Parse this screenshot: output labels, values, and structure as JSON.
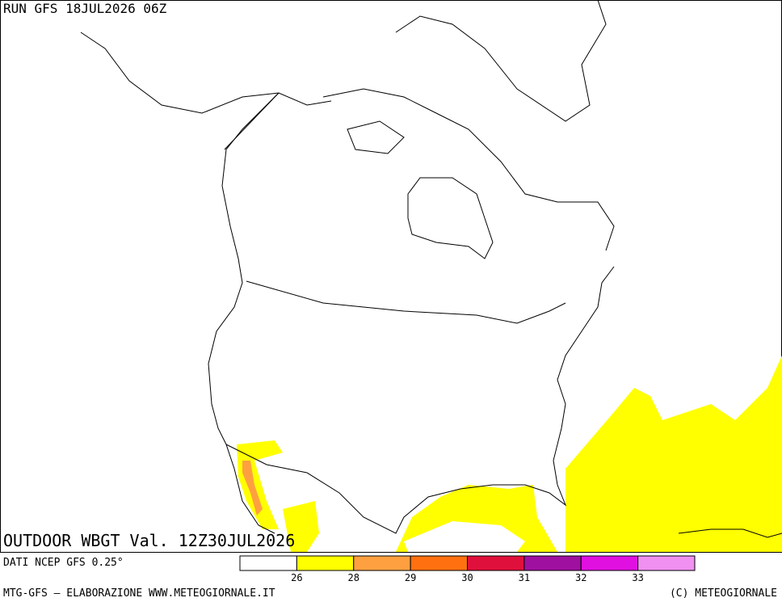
{
  "header": {
    "run": "RUN GFS 18JUL2026 06Z",
    "title": "OUTDOOR WBGT Val. 12Z30JUL2026"
  },
  "legend": {
    "source": "DATI NCEP GFS 0.25°",
    "colors": [
      "#ffffff",
      "#ffff00",
      "#ffa040",
      "#ff7010",
      "#e0103c",
      "#a010a0",
      "#e010e0",
      "#f090f0"
    ],
    "ticks": [
      26,
      28,
      29,
      30,
      31,
      32,
      33
    ]
  },
  "footer": {
    "left": "MTG-GFS — ELABORAZIONE WWW.METEOGIORNALE.IT",
    "right": "(C) METEOGIORNALE"
  }
}
